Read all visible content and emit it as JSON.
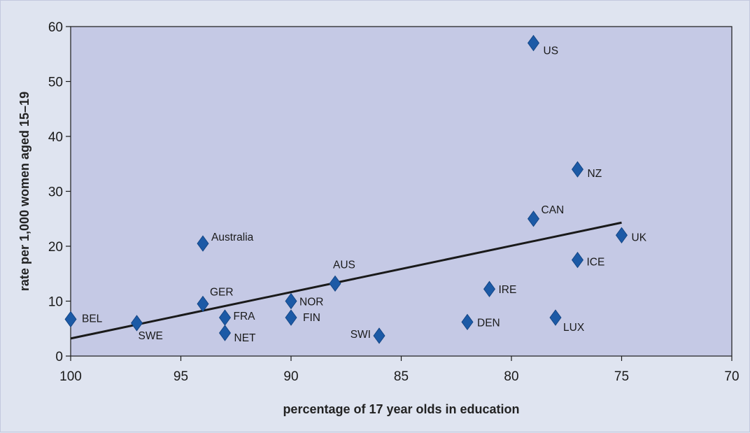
{
  "chart_data": {
    "type": "scatter",
    "title": "",
    "xlabel": "percentage of 17 year olds in education",
    "ylabel": "rate per 1,000 women aged 15–19",
    "xlim": [
      100,
      70
    ],
    "ylim": [
      0,
      60
    ],
    "x_reversed": true,
    "x_ticks": [
      100,
      95,
      90,
      85,
      80,
      75,
      70
    ],
    "y_ticks": [
      0,
      10,
      20,
      30,
      40,
      50,
      60
    ],
    "grid": false,
    "marker": "diamond",
    "colors": {
      "plot_background": "#c5c9e5",
      "page_background": "#dfe4f0",
      "marker": "#1c5aa6",
      "trendline": "#1a1a1a"
    },
    "points": [
      {
        "label": "US",
        "x": 79.0,
        "y": 57.0
      },
      {
        "label": "NZ",
        "x": 77.0,
        "y": 34.0
      },
      {
        "label": "CAN",
        "x": 79.0,
        "y": 25.0
      },
      {
        "label": "UK",
        "x": 75.0,
        "y": 22.0
      },
      {
        "label": "Australia",
        "x": 94.0,
        "y": 20.5
      },
      {
        "label": "ICE",
        "x": 77.0,
        "y": 17.5
      },
      {
        "label": "AUS",
        "x": 88.0,
        "y": 13.2
      },
      {
        "label": "IRE",
        "x": 81.0,
        "y": 12.2
      },
      {
        "label": "NOR",
        "x": 90.0,
        "y": 10.0
      },
      {
        "label": "GER",
        "x": 94.0,
        "y": 9.5
      },
      {
        "label": "FRA",
        "x": 93.0,
        "y": 7.0
      },
      {
        "label": "FIN",
        "x": 90.0,
        "y": 7.0
      },
      {
        "label": "BEL",
        "x": 100.0,
        "y": 6.7
      },
      {
        "label": "LUX",
        "x": 78.0,
        "y": 7.0
      },
      {
        "label": "SWE",
        "x": 97.0,
        "y": 6.0
      },
      {
        "label": "DEN",
        "x": 82.0,
        "y": 6.2
      },
      {
        "label": "NET",
        "x": 93.0,
        "y": 4.2
      },
      {
        "label": "SWI",
        "x": 86.0,
        "y": 3.7
      }
    ],
    "trendline": {
      "x": [
        100,
        75
      ],
      "y": [
        3.2,
        24.3
      ]
    }
  }
}
